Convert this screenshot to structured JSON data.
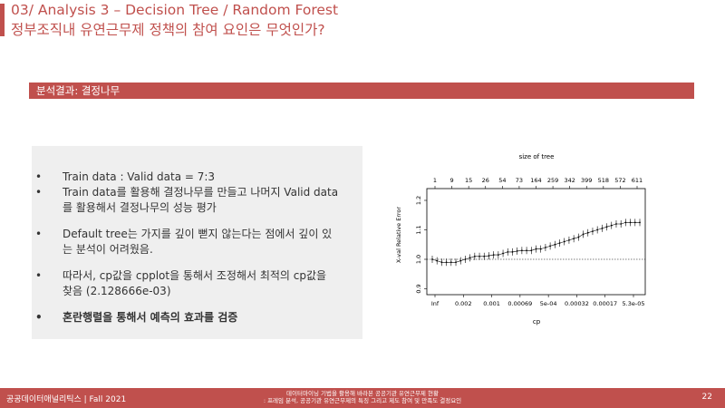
{
  "header": {
    "title_line1": "03/ Analysis 3 – Decision Tree / Random Forest",
    "title_line2": "정부조직내 유연근무제 정책의 참여 요인은 무엇인가?"
  },
  "section": {
    "label": "분석결과: 결정나무"
  },
  "bullets": [
    {
      "line1": "Train data : Valid data = 7:3",
      "line2": ""
    },
    {
      "line1": "Train data를 활용해 결정나무를 만들고 나머지 Valid data",
      "line2": "를 활용해서 결정나무의 성능 평가"
    },
    {
      "line1": "Default tree는 가지를 깊이 뻗지 않는다는 점에서 깊이 있",
      "line2": "는 분석이 어려웠음."
    },
    {
      "line1": "따라서, cp값을 cpplot을 통해서 조정해서 최적의 cp값을",
      "line2": "찾음 (2.128666e-03)"
    },
    {
      "line1": "혼란행렬을 통해서 예측의 효과를 검증",
      "line2": ""
    }
  ],
  "chart_data": {
    "type": "line",
    "title": "size of tree",
    "xlabel": "cp",
    "ylabel": "X-val Relative Error",
    "top_axis_ticks": [
      "1",
      "9",
      "15",
      "26",
      "54",
      "73",
      "164",
      "259",
      "342",
      "399",
      "518",
      "572",
      "611"
    ],
    "x_tick_labels": [
      "Inf",
      "0.002",
      "0.001",
      "0.00069",
      "5e-04",
      "0.00032",
      "0.00017",
      "5.3e-05"
    ],
    "y_ticks": [
      "0.9",
      "1.0",
      "1.1",
      "1.2"
    ],
    "ylim": [
      0.88,
      1.24
    ],
    "reference_line": 1.0,
    "values": [
      1.0,
      0.995,
      0.99,
      0.99,
      0.99,
      0.99,
      0.995,
      1.0,
      1.005,
      1.01,
      1.01,
      1.01,
      1.012,
      1.015,
      1.015,
      1.02,
      1.025,
      1.025,
      1.028,
      1.03,
      1.03,
      1.03,
      1.035,
      1.035,
      1.04,
      1.045,
      1.05,
      1.055,
      1.06,
      1.065,
      1.07,
      1.075,
      1.085,
      1.09,
      1.095,
      1.1,
      1.105,
      1.11,
      1.115,
      1.12,
      1.12,
      1.125,
      1.125,
      1.125,
      1.125
    ]
  },
  "footer": {
    "left": "공공데이터애널리틱스 | Fall 2021",
    "center_line1": "데이터마이닝 기법을 활용해 바라본 공공기관 유연근무제 현황",
    "center_line2": ": 프레임 분석, 공공기관 유연근무제의 특징 그리고 제도 참여 및 만족도 결정요인",
    "page": "22"
  }
}
